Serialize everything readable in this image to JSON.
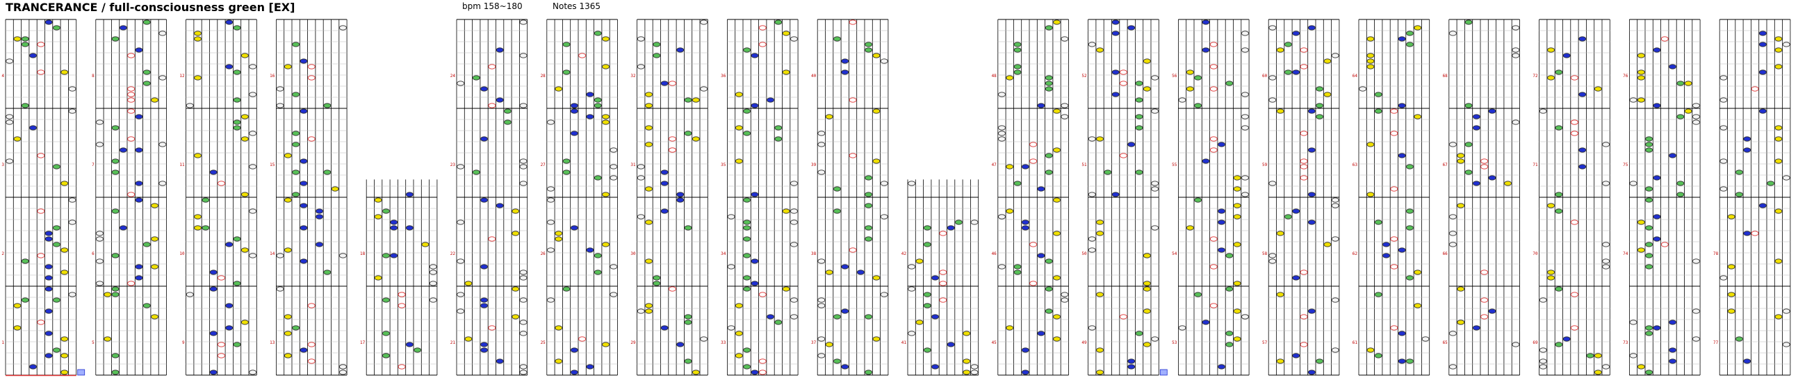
{
  "header": {
    "title": "TRANCERANCE / full-consciousness green [EX]",
    "bpm": "bpm 158~180",
    "notes": "Notes 1365"
  },
  "chart_data": {
    "type": "rhythm-chart",
    "lanes": 9,
    "columns": 20,
    "measures_per_column": 4,
    "measure_counter_range": [
      1,
      78
    ],
    "note_colors": {
      "white": "#f4f4f4",
      "yellow": "#f0e000",
      "green": "#58c058",
      "blue": "#2030d0",
      "red": "#ffffff",
      "red_outline": "#e03030",
      "outline": "#303030"
    },
    "short_columns": [
      4,
      10
    ]
  }
}
